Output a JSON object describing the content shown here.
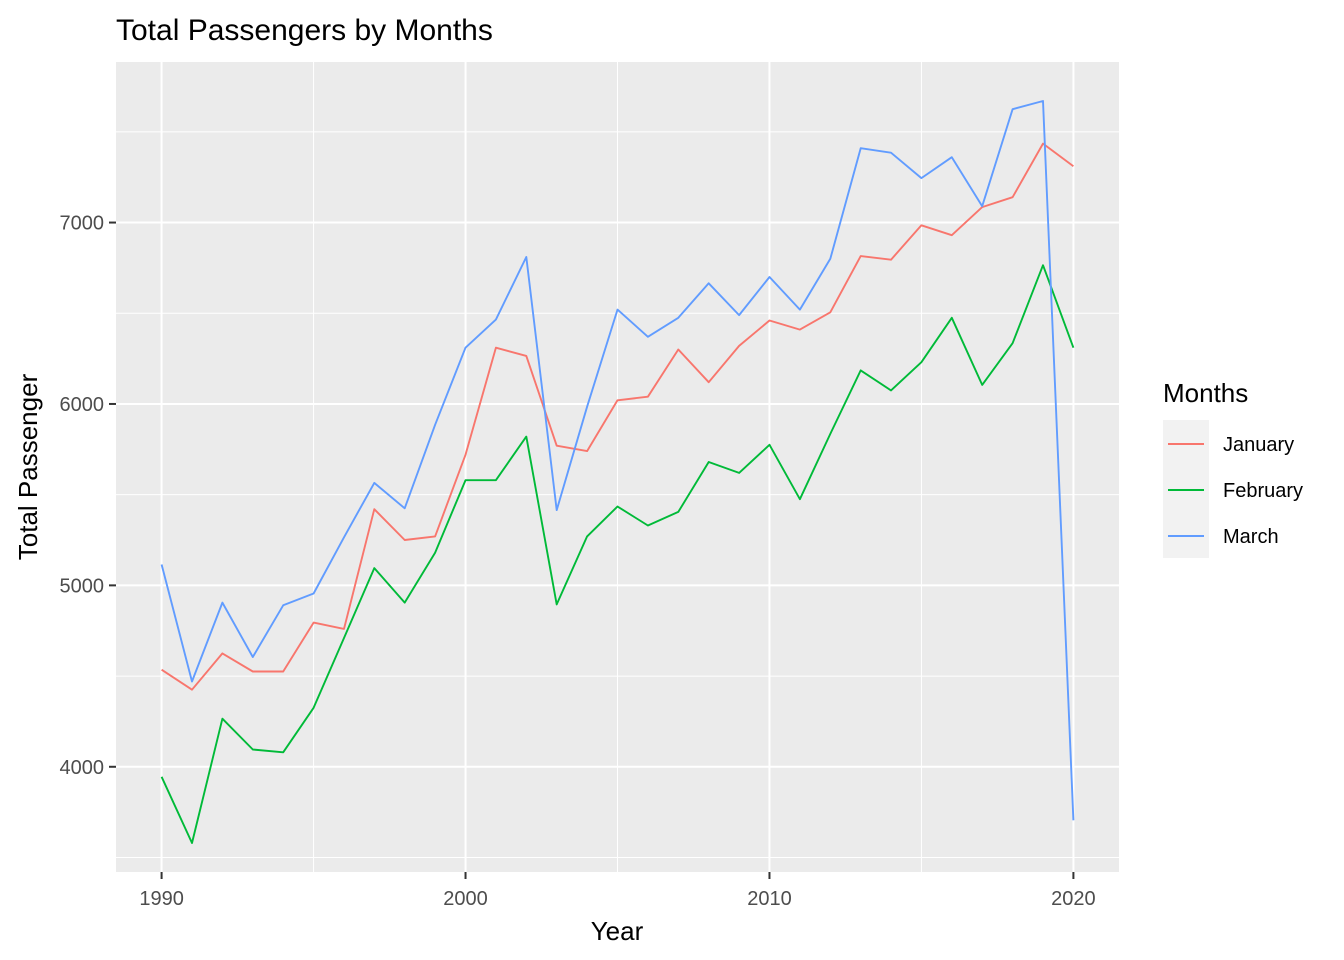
{
  "chart_data": {
    "type": "line",
    "title": "Total Passengers by Months",
    "xlabel": "Year",
    "ylabel": "Total Passenger",
    "xlim": [
      1988.5,
      2021.5
    ],
    "ylim": [
      3420,
      7885
    ],
    "x_ticks": [
      1990,
      2000,
      2010,
      2020
    ],
    "x_tick_labels": [
      "1990",
      "2000",
      "2010",
      "2020"
    ],
    "y_ticks": [
      4000,
      5000,
      6000,
      7000
    ],
    "y_tick_labels": [
      "4000",
      "5000",
      "6000",
      "7000"
    ],
    "grid": true,
    "background": "#ebebeb",
    "legend": {
      "title": "Months",
      "position": "right"
    },
    "x": [
      1990,
      1991,
      1992,
      1993,
      1994,
      1995,
      1996,
      1997,
      1998,
      1999,
      2000,
      2001,
      2002,
      2003,
      2004,
      2005,
      2006,
      2007,
      2008,
      2009,
      2010,
      2011,
      2012,
      2013,
      2014,
      2015,
      2016,
      2017,
      2018,
      2019,
      2020
    ],
    "series": [
      {
        "name": "January",
        "color": "#f8766d",
        "values": [
          4535,
          4425,
          4625,
          4525,
          4525,
          4795,
          4760,
          5420,
          5250,
          5270,
          5720,
          6310,
          6265,
          5770,
          5740,
          6020,
          6040,
          6300,
          6120,
          6320,
          6460,
          6410,
          6505,
          6815,
          6795,
          6985,
          6930,
          7085,
          7140,
          7435,
          7310
        ]
      },
      {
        "name": "February",
        "color": "#00ba38",
        "values": [
          3945,
          3580,
          4265,
          4095,
          4080,
          4325,
          4710,
          5095,
          4905,
          5180,
          5580,
          5580,
          5820,
          4895,
          5270,
          5435,
          5330,
          5405,
          5680,
          5620,
          5775,
          5475,
          5835,
          6185,
          6075,
          6230,
          6475,
          6105,
          6335,
          6765,
          6310
        ]
      },
      {
        "name": "March",
        "color": "#619cff",
        "values": [
          5115,
          4470,
          4905,
          4605,
          4890,
          4955,
          5265,
          5565,
          5425,
          5885,
          6310,
          6465,
          6810,
          5415,
          5985,
          6520,
          6370,
          6475,
          6665,
          6490,
          6700,
          6520,
          6800,
          7410,
          7385,
          7245,
          7360,
          7090,
          7625,
          7670,
          3705
        ]
      }
    ]
  }
}
